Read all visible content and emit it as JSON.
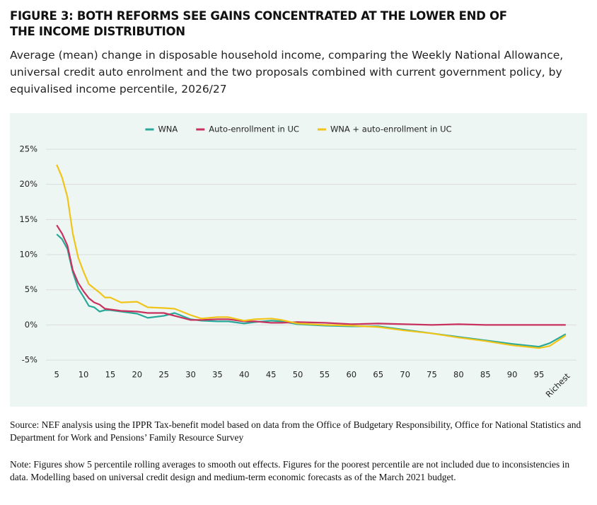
{
  "chart_data": {
    "type": "line",
    "title": "FIGURE 3: BOTH REFORMS SEE GAINS CONCENTRATED AT THE LOWER END OF THE INCOME DISTRIBUTION",
    "subtitle": "Average (mean) change in disposable household income, comparing the Weekly National Allowance, universal credit auto enrolment and the two proposals combined with current government policy, by equivalised income percentile, 2026/27",
    "source": "Source: NEF analysis using the IPPR Tax-benefit model based on data from the Office of Budgetary Responsibility, Office for National Statistics and Department for Work and Pensions’ Family Resource Survey",
    "note": "Note: Figures show 5 percentile rolling averages to smooth out effects. Figures for the poorest percentile are not included due to inconsistencies in data. Modelling based on universal credit design and medium-term economic forecasts as of the March 2021 budget.",
    "x": [
      5,
      6,
      7,
      8,
      9,
      10,
      11,
      12,
      13,
      14,
      15,
      17,
      20,
      22,
      25,
      27,
      30,
      32,
      35,
      37,
      40,
      42,
      45,
      47,
      50,
      55,
      60,
      65,
      70,
      75,
      80,
      85,
      90,
      95,
      97,
      100
    ],
    "series": [
      {
        "name": "WNA",
        "color": "#2aa99a",
        "values": [
          12.9,
          12.2,
          10.8,
          7.5,
          5.2,
          4.0,
          2.7,
          2.5,
          1.9,
          2.1,
          2.1,
          1.9,
          1.6,
          1.0,
          1.3,
          1.7,
          0.8,
          0.6,
          0.5,
          0.5,
          0.2,
          0.4,
          0.6,
          0.5,
          0.1,
          -0.1,
          -0.2,
          -0.2,
          -0.7,
          -1.2,
          -1.7,
          -2.2,
          -2.7,
          -3.1,
          -2.6,
          -1.3
        ]
      },
      {
        "name": "Auto-enrollment in UC",
        "color": "#c8325e",
        "values": [
          14.2,
          13.0,
          11.3,
          7.8,
          6.0,
          4.8,
          3.8,
          3.2,
          2.9,
          2.3,
          2.2,
          2.0,
          1.9,
          1.7,
          1.7,
          1.3,
          0.7,
          0.7,
          0.8,
          0.8,
          0.5,
          0.5,
          0.3,
          0.3,
          0.4,
          0.3,
          0.1,
          0.2,
          0.1,
          0.0,
          0.1,
          0.0,
          0.0,
          0.0,
          0.0,
          0.0
        ]
      },
      {
        "name": "WNA + auto-enrollment in UC",
        "color": "#f0c419",
        "values": [
          22.8,
          21.0,
          18.2,
          13.0,
          9.6,
          7.6,
          5.8,
          5.2,
          4.6,
          3.9,
          3.9,
          3.2,
          3.3,
          2.5,
          2.4,
          2.3,
          1.4,
          0.9,
          1.1,
          1.1,
          0.6,
          0.8,
          0.9,
          0.7,
          0.2,
          0.0,
          -0.1,
          -0.3,
          -0.8,
          -1.2,
          -1.8,
          -2.3,
          -2.9,
          -3.3,
          -3.0,
          -1.5
        ]
      }
    ],
    "xlim": [
      3,
      102
    ],
    "xticks": [
      5,
      10,
      15,
      20,
      25,
      30,
      35,
      40,
      45,
      50,
      55,
      60,
      65,
      70,
      75,
      80,
      85,
      90,
      95,
      {
        "value": 100,
        "label": "Richest"
      }
    ],
    "ylim": [
      -6,
      26
    ],
    "yticks": [
      {
        "value": -5,
        "label": "-5%"
      },
      {
        "value": 0,
        "label": "0%"
      },
      {
        "value": 5,
        "label": "5%"
      },
      {
        "value": 10,
        "label": "10%"
      },
      {
        "value": 15,
        "label": "15%"
      },
      {
        "value": 20,
        "label": "20%"
      },
      {
        "value": 25,
        "label": "25%"
      }
    ],
    "grid": true,
    "legend": "top"
  }
}
